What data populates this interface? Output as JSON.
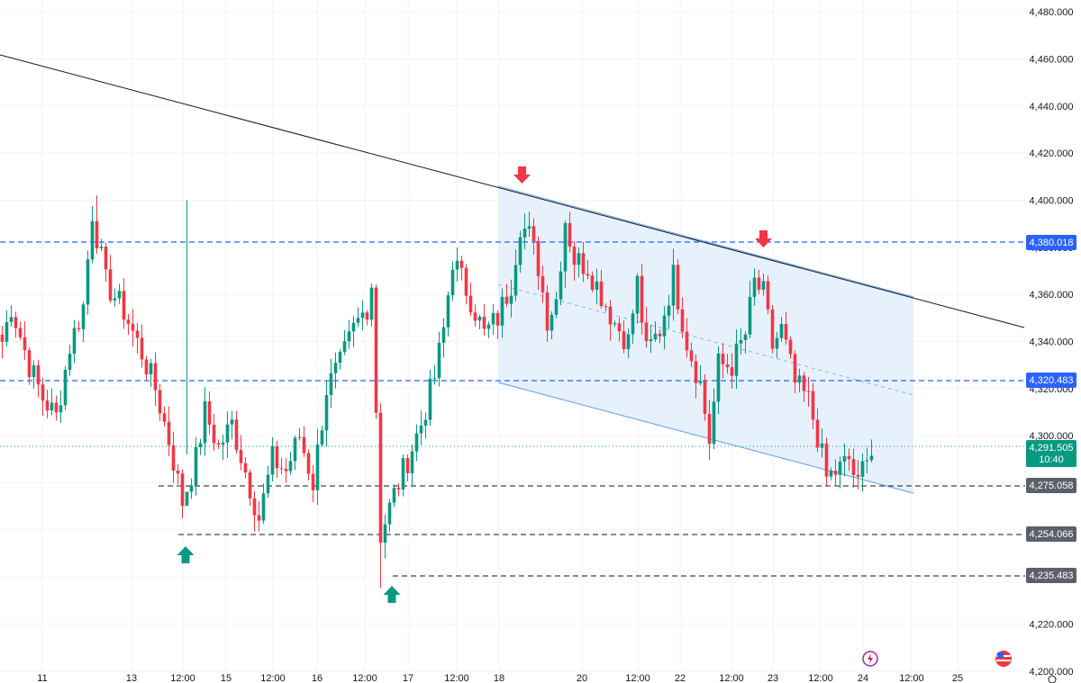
{
  "chart_data": {
    "type": "candlestick",
    "y_axis": {
      "min": 4195,
      "max": 4485,
      "ticks": [
        "4,480.000",
        "4,460.000",
        "4,440.000",
        "4,420.000",
        "4,400.000",
        "4,380.000",
        "4,360.000",
        "4,340.000",
        "4,320.000",
        "4,300.000",
        "4,280.000",
        "4,260.000",
        "4,240.000",
        "4,220.000",
        "4,200.000"
      ]
    },
    "x_axis": {
      "ticks": [
        "11",
        "13",
        "12:00",
        "15",
        "12:00",
        "16",
        "12:00",
        "17",
        "12:00",
        "18",
        "20",
        "12:00",
        "22",
        "12:00",
        "23",
        "12:00",
        "24",
        "12:00",
        "25"
      ]
    },
    "colors": {
      "up": "#089981",
      "down": "#f23645",
      "blue_level": "#2962ff",
      "support_level": "#131722",
      "channel_fill": "#e3effc",
      "channel_line": "#5b9cf6",
      "trendline": "#131722",
      "current_price": "#089981",
      "support_label_bg": "#5d606b"
    },
    "price_labels": {
      "level_4380": "4,380.018",
      "level_4320": "4,320.483",
      "current_price": "4,291.505",
      "countdown": "10:40",
      "level_4275": "4,275.058",
      "level_4254": "4,254.066",
      "level_4235": "4,235.483"
    },
    "levels": {
      "blue": [
        4380.018,
        4320.483
      ],
      "support": [
        4275.058,
        4254.066,
        4235.483
      ],
      "current": 4291.505
    },
    "markers": {
      "arrow_up": [
        "buy-marker-1",
        "buy-marker-2"
      ],
      "arrow_down": [
        "sell-marker-1",
        "sell-marker-2"
      ]
    },
    "anchors": [
      {
        "t": 0,
        "p": 4340
      },
      {
        "t": 2,
        "p": 4355
      },
      {
        "t": 6,
        "p": 4330
      },
      {
        "t": 9,
        "p": 4316
      },
      {
        "t": 12,
        "p": 4308
      },
      {
        "t": 15,
        "p": 4338
      },
      {
        "t": 18,
        "p": 4355
      },
      {
        "t": 20,
        "p": 4395
      },
      {
        "t": 23,
        "p": 4365
      },
      {
        "t": 27,
        "p": 4353
      },
      {
        "t": 31,
        "p": 4335
      },
      {
        "t": 34,
        "p": 4320
      },
      {
        "t": 37,
        "p": 4298
      },
      {
        "t": 40,
        "p": 4272
      },
      {
        "t": 43,
        "p": 4290
      },
      {
        "t": 45,
        "p": 4310
      },
      {
        "t": 48,
        "p": 4295
      },
      {
        "t": 51,
        "p": 4305
      },
      {
        "t": 54,
        "p": 4285
      },
      {
        "t": 57,
        "p": 4265
      },
      {
        "t": 60,
        "p": 4290
      },
      {
        "t": 63,
        "p": 4285
      },
      {
        "t": 66,
        "p": 4300
      },
      {
        "t": 69,
        "p": 4280
      },
      {
        "t": 72,
        "p": 4320
      },
      {
        "t": 75,
        "p": 4330
      },
      {
        "t": 78,
        "p": 4345
      },
      {
        "t": 81,
        "p": 4355
      },
      {
        "t": 82,
        "p": 4365
      },
      {
        "t": 84,
        "p": 4258
      },
      {
        "t": 87,
        "p": 4275
      },
      {
        "t": 90,
        "p": 4290
      },
      {
        "t": 93,
        "p": 4305
      },
      {
        "t": 96,
        "p": 4325
      },
      {
        "t": 98,
        "p": 4345
      },
      {
        "t": 100,
        "p": 4375
      },
      {
        "t": 104,
        "p": 4358
      },
      {
        "t": 107,
        "p": 4343
      },
      {
        "t": 110,
        "p": 4350
      },
      {
        "t": 113,
        "p": 4365
      },
      {
        "t": 115,
        "p": 4390
      },
      {
        "t": 117,
        "p": 4385
      },
      {
        "t": 119,
        "p": 4372
      },
      {
        "t": 121,
        "p": 4350
      },
      {
        "t": 123,
        "p": 4358
      },
      {
        "t": 125,
        "p": 4392
      },
      {
        "t": 127,
        "p": 4375
      },
      {
        "t": 130,
        "p": 4372
      },
      {
        "t": 133,
        "p": 4360
      },
      {
        "t": 136,
        "p": 4348
      },
      {
        "t": 139,
        "p": 4340
      },
      {
        "t": 141,
        "p": 4365
      },
      {
        "t": 143,
        "p": 4335
      },
      {
        "t": 146,
        "p": 4345
      },
      {
        "t": 149,
        "p": 4368
      },
      {
        "t": 152,
        "p": 4340
      },
      {
        "t": 155,
        "p": 4322
      },
      {
        "t": 157,
        "p": 4298
      },
      {
        "t": 159,
        "p": 4330
      },
      {
        "t": 162,
        "p": 4330
      },
      {
        "t": 165,
        "p": 4343
      },
      {
        "t": 167,
        "p": 4365
      },
      {
        "t": 169,
        "p": 4360
      },
      {
        "t": 171,
        "p": 4338
      },
      {
        "t": 173,
        "p": 4345
      },
      {
        "t": 176,
        "p": 4322
      },
      {
        "t": 179,
        "p": 4315
      },
      {
        "t": 181,
        "p": 4300
      },
      {
        "t": 183,
        "p": 4282
      },
      {
        "t": 186,
        "p": 4286
      },
      {
        "t": 188,
        "p": 4290
      },
      {
        "t": 190,
        "p": 4278
      },
      {
        "t": 192,
        "p": 4295
      },
      {
        "t": 193,
        "p": 4280
      }
    ]
  }
}
